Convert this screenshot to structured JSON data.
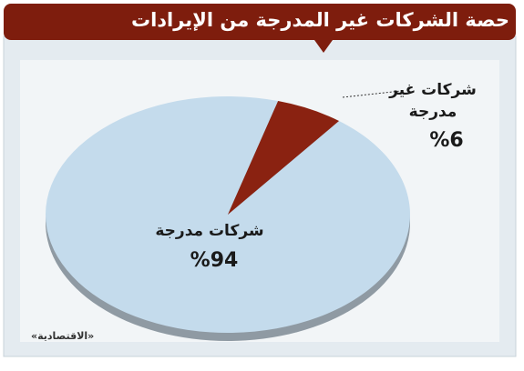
{
  "chart_data": {
    "type": "pie",
    "title": "حصة الشركات غير المدرجة من الإيرادات",
    "categories": [
      "شركات مدرجة",
      "شركات غير مدرجة"
    ],
    "values": [
      94,
      6
    ],
    "value_labels": [
      "%94",
      "%6"
    ],
    "colors": [
      "#c4dbec",
      "#8a2211"
    ],
    "source": "«الاقتصادية»"
  }
}
